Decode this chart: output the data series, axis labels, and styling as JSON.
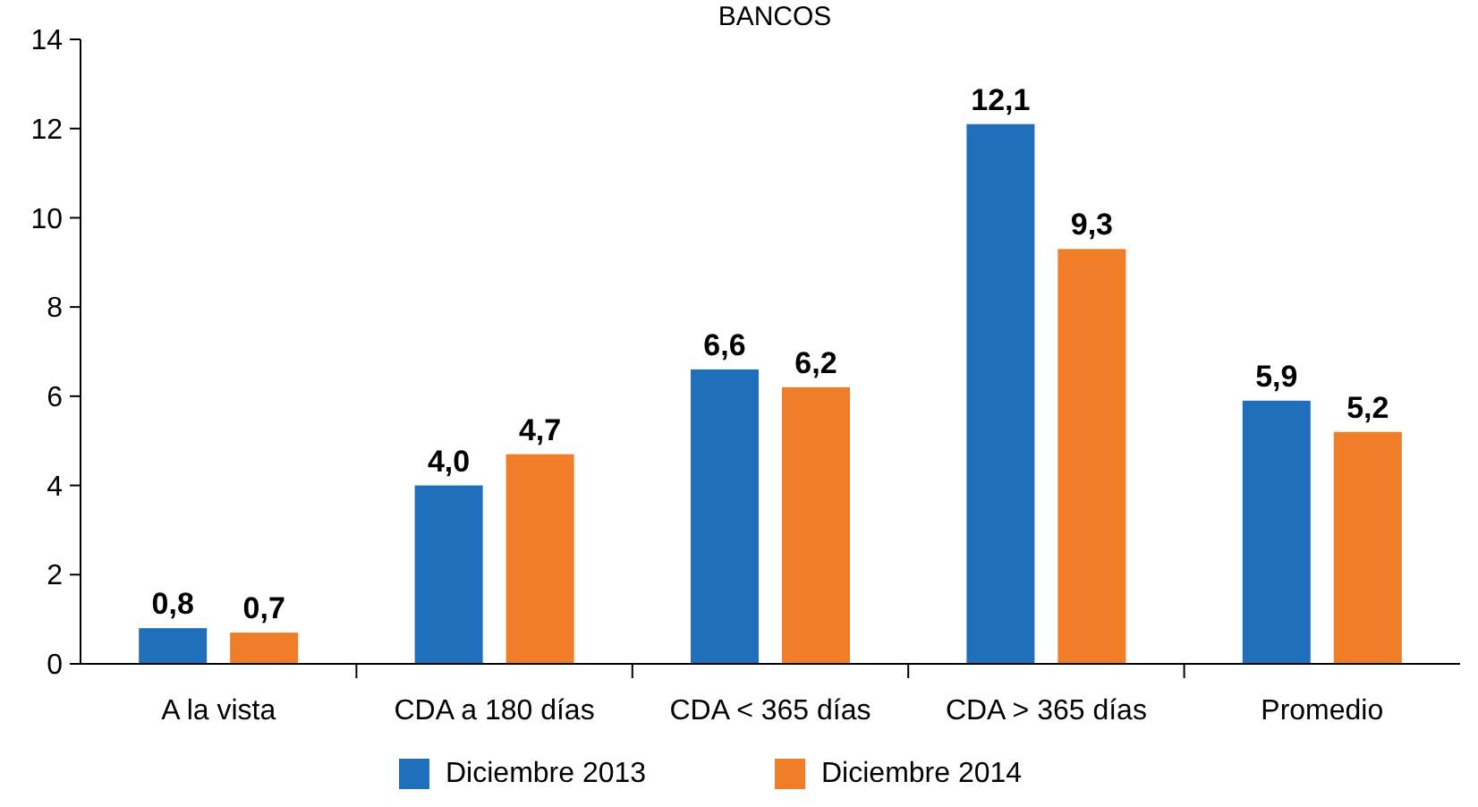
{
  "chart_data": {
    "type": "bar",
    "title": "BANCOS",
    "categories": [
      "A la vista",
      "CDA a 180 días",
      "CDA < 365 días",
      "CDA > 365 días",
      "Promedio"
    ],
    "series": [
      {
        "name": "Diciembre 2013",
        "color": "#1f6fba",
        "values": [
          0.8,
          4.0,
          6.6,
          12.1,
          5.9
        ],
        "value_labels": [
          "0,8",
          "4,0",
          "6,6",
          "12,1",
          "5,9"
        ]
      },
      {
        "name": "Diciembre 2014",
        "color": "#f07d28",
        "values": [
          0.7,
          4.7,
          6.2,
          9.3,
          5.2
        ],
        "value_labels": [
          "0,7",
          "4,7",
          "6,2",
          "9,3",
          "5,2"
        ]
      }
    ],
    "ylim": [
      0,
      14
    ],
    "yticks": [
      0,
      2,
      4,
      6,
      8,
      10,
      12,
      14
    ],
    "grid": false,
    "legend": "bottom"
  }
}
